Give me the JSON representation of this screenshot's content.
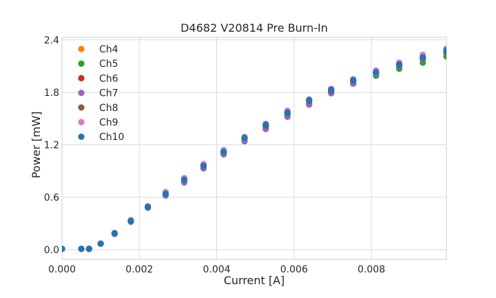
{
  "chart_data": {
    "type": "scatter",
    "title": "D4682 V20814 Pre Burn-In",
    "xlabel": "Current [A]",
    "ylabel": "Power [mW]",
    "xlim": [
      0.0,
      0.00994
    ],
    "ylim": [
      -0.11,
      2.43
    ],
    "xticks": [
      0.0,
      0.002,
      0.004,
      0.006,
      0.008
    ],
    "xtick_labels": [
      "0.000",
      "0.002",
      "0.004",
      "0.006",
      "0.008"
    ],
    "yticks": [
      0.0,
      0.6,
      1.2,
      1.8,
      2.4
    ],
    "ytick_labels": [
      "0.0",
      "0.6",
      "1.2",
      "1.8",
      "2.4"
    ],
    "grid": true,
    "legend_position": "top-left",
    "x": [
      0.0,
      0.0005,
      0.0007,
      0.001,
      0.00136,
      0.00178,
      0.00222,
      0.00268,
      0.00316,
      0.00366,
      0.00418,
      0.00472,
      0.00527,
      0.00583,
      0.00639,
      0.00696,
      0.00753,
      0.00812,
      0.00872,
      0.00933,
      0.00994
    ],
    "series": [
      {
        "name": "Ch4",
        "color": "#ff7f0e",
        "values": [
          0.01,
          0.01,
          0.01,
          0.07,
          0.19,
          0.33,
          0.49,
          0.64,
          0.8,
          0.96,
          1.11,
          1.27,
          1.42,
          1.56,
          1.7,
          1.81,
          1.92,
          2.02,
          2.11,
          2.19,
          2.27
        ]
      },
      {
        "name": "Ch5",
        "color": "#2ca02c",
        "values": [
          0.01,
          0.01,
          0.01,
          0.07,
          0.19,
          0.33,
          0.49,
          0.63,
          0.79,
          0.95,
          1.1,
          1.26,
          1.4,
          1.54,
          1.67,
          1.79,
          1.9,
          1.99,
          2.07,
          2.14,
          2.21
        ]
      },
      {
        "name": "Ch6",
        "color": "#d62728",
        "values": [
          0.01,
          0.01,
          0.01,
          0.07,
          0.19,
          0.33,
          0.49,
          0.64,
          0.8,
          0.96,
          1.12,
          1.28,
          1.43,
          1.57,
          1.71,
          1.82,
          1.93,
          2.02,
          2.11,
          2.19,
          2.27
        ]
      },
      {
        "name": "Ch7",
        "color": "#9467bd",
        "values": [
          0.01,
          0.01,
          0.01,
          0.07,
          0.18,
          0.32,
          0.48,
          0.62,
          0.77,
          0.93,
          1.09,
          1.24,
          1.38,
          1.52,
          1.66,
          1.79,
          1.9,
          2.01,
          2.1,
          2.18,
          2.25
        ]
      },
      {
        "name": "Ch8",
        "color": "#8c564b",
        "values": [
          0.01,
          0.01,
          0.01,
          0.07,
          0.19,
          0.33,
          0.49,
          0.64,
          0.8,
          0.96,
          1.12,
          1.28,
          1.42,
          1.56,
          1.7,
          1.82,
          1.93,
          2.03,
          2.11,
          2.19,
          2.26
        ]
      },
      {
        "name": "Ch9",
        "color": "#e377c2",
        "values": [
          0.01,
          0.01,
          0.01,
          0.07,
          0.19,
          0.34,
          0.5,
          0.66,
          0.82,
          0.98,
          1.14,
          1.29,
          1.44,
          1.59,
          1.72,
          1.84,
          1.95,
          2.05,
          2.14,
          2.23,
          2.3
        ]
      },
      {
        "name": "Ch10",
        "color": "#1f77b4",
        "values": [
          0.01,
          0.01,
          0.01,
          0.07,
          0.19,
          0.33,
          0.49,
          0.64,
          0.8,
          0.96,
          1.12,
          1.28,
          1.43,
          1.57,
          1.71,
          1.83,
          1.94,
          2.03,
          2.12,
          2.2,
          2.28
        ]
      }
    ]
  }
}
